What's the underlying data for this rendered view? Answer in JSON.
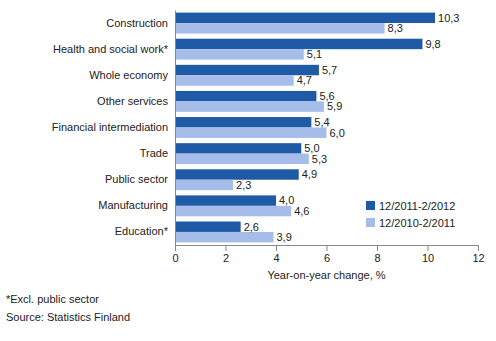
{
  "chart_data": {
    "type": "bar",
    "orientation": "horizontal",
    "categories": [
      "Construction",
      "Health and social work*",
      "Whole economy",
      "Other services",
      "Financial intermediation",
      "Trade",
      "Public sector",
      "Manufacturing",
      "Education*"
    ],
    "series": [
      {
        "name": "12/2011-2/2012",
        "color": "#1f5aa6",
        "values": [
          10.3,
          9.8,
          5.7,
          5.6,
          5.4,
          5.0,
          4.9,
          4.0,
          2.6
        ],
        "value_labels": [
          "10,3",
          "9,8",
          "5,7",
          "5,6",
          "5,4",
          "5,0",
          "4,9",
          "4,0",
          "2,6"
        ]
      },
      {
        "name": "12/2010-2/2011",
        "color": "#a7bde9",
        "values": [
          8.3,
          5.1,
          4.7,
          5.9,
          6.0,
          5.3,
          2.3,
          4.6,
          3.9
        ],
        "value_labels": [
          "8,3",
          "5,1",
          "4,7",
          "5,9",
          "6,0",
          "5,3",
          "2,3",
          "4,6",
          "3,9"
        ]
      }
    ],
    "xlim": [
      0,
      12
    ],
    "xticks": [
      0,
      2,
      4,
      6,
      8,
      10,
      12
    ],
    "xlabel": "Year-on-year change, %",
    "annotations": [
      "*Excl. public sector",
      "Source: Statistics Finland"
    ],
    "data_labels": true,
    "legend": "lower right",
    "grid": false
  }
}
